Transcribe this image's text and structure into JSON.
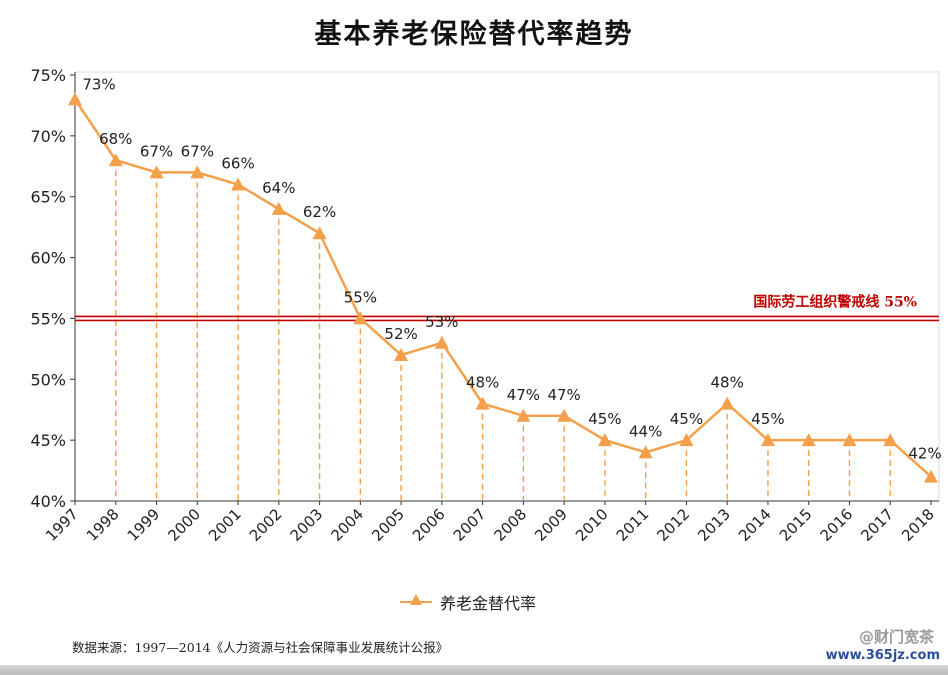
{
  "chart_data": {
    "type": "line",
    "title": "基本养老保险替代率趋势",
    "x": [
      "1997",
      "1998",
      "1999",
      "2000",
      "2001",
      "2002",
      "2003",
      "2004",
      "2005",
      "2006",
      "2007",
      "2008",
      "2009",
      "2010",
      "2011",
      "2012",
      "2013",
      "2014",
      "2015",
      "2016",
      "2017",
      "2018"
    ],
    "series": [
      {
        "name": "养老金替代率",
        "values": [
          73,
          68,
          67,
          67,
          66,
          64,
          62,
          55,
          52,
          53,
          48,
          47,
          47,
          45,
          44,
          45,
          48,
          45,
          45,
          45,
          45,
          42
        ],
        "data_labels": [
          "73%",
          "68%",
          "67%",
          "67%",
          "66%",
          "64%",
          "62%",
          "55%",
          "52%",
          "53%",
          "48%",
          "47%",
          "47%",
          "45%",
          "44%",
          "45%",
          "48%",
          "45%",
          "",
          "",
          "",
          "42%"
        ],
        "color": "#F4A04A"
      }
    ],
    "ylim": [
      40,
      75
    ],
    "yticks": [
      "40%",
      "45%",
      "50%",
      "55%",
      "60%",
      "65%",
      "70%",
      "75%"
    ],
    "reference_line": {
      "value": 55,
      "label": "国际劳工组织警戒线  55%",
      "color": "#C00000"
    },
    "drop_lines": true,
    "legend_position": "bottom",
    "grid": false
  },
  "source_note": "数据来源：1997—2014《人力资源与社会保障事业发展统计公报》",
  "watermark": {
    "text": "@财门宽茶",
    "url": "www.365jz.com"
  }
}
